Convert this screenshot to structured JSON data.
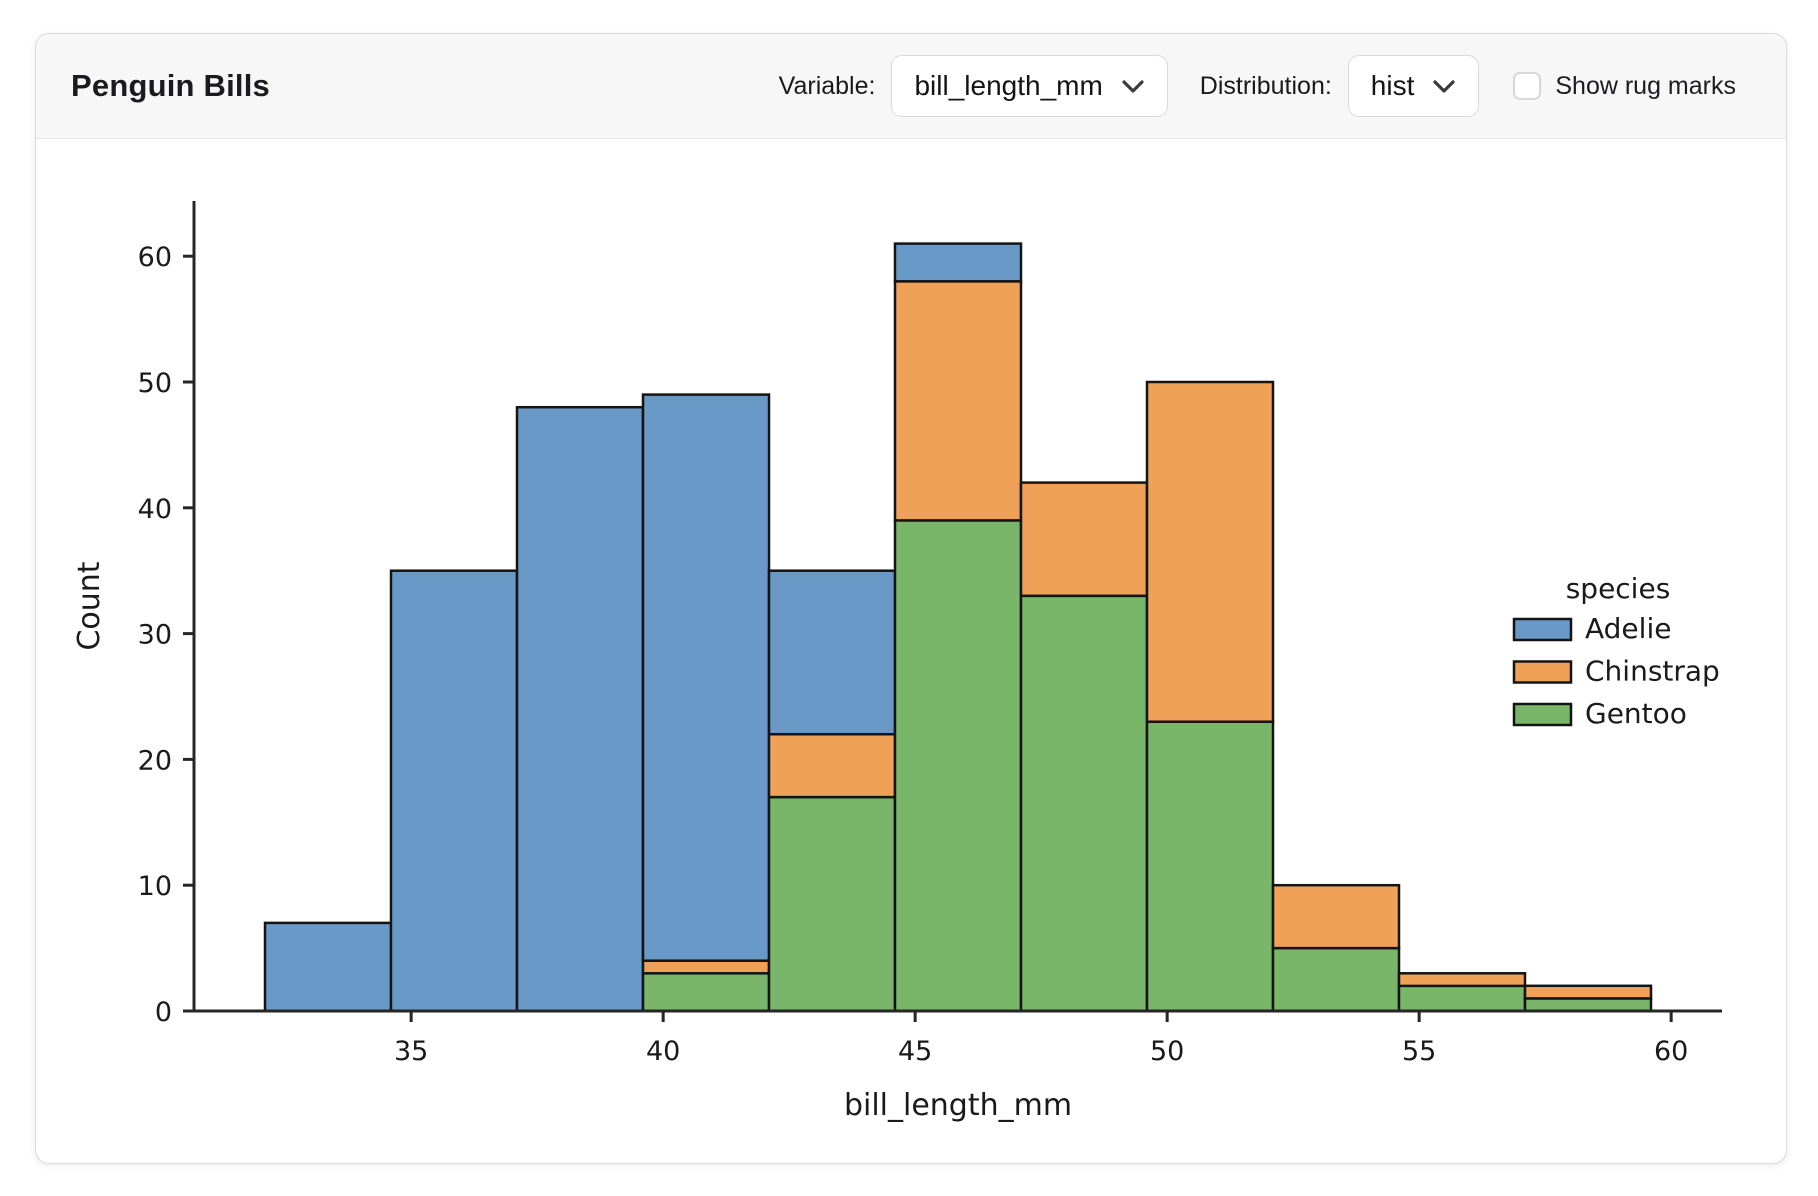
{
  "card": {
    "title": "Penguin Bills"
  },
  "controls": {
    "variable_label": "Variable:",
    "variable_value": "bill_length_mm",
    "distribution_label": "Distribution:",
    "distribution_value": "hist",
    "rug_label": "Show rug marks",
    "rug_checked": false
  },
  "chart_data": {
    "type": "bar",
    "subtype": "stacked-histogram",
    "title": "",
    "xlabel": "bill_length_mm",
    "ylabel": "Count",
    "bin_start": 32.1,
    "bin_width": 2.5,
    "bin_edges": [
      32.1,
      34.6,
      37.1,
      39.6,
      42.1,
      44.6,
      47.1,
      49.6,
      52.1,
      54.6,
      57.1,
      59.6
    ],
    "x_ticks": [
      35,
      40,
      45,
      50,
      55,
      60
    ],
    "y_ticks": [
      0,
      10,
      20,
      30,
      40,
      50,
      60
    ],
    "xlim": [
      30.69,
      61.01
    ],
    "ylim": [
      0,
      64.4
    ],
    "grid": false,
    "series": [
      {
        "name": "Adelie",
        "color": "#6999C7",
        "values": [
          7,
          35,
          48,
          45,
          13,
          3,
          0,
          0,
          0,
          0,
          0
        ]
      },
      {
        "name": "Chinstrap",
        "color": "#EFA157",
        "values": [
          0,
          0,
          0,
          1,
          5,
          19,
          9,
          27,
          5,
          1,
          1
        ]
      },
      {
        "name": "Gentoo",
        "color": "#7AB66A",
        "values": [
          0,
          0,
          0,
          3,
          17,
          39,
          33,
          23,
          5,
          2,
          1
        ]
      }
    ],
    "stack_order_bottom_to_top": [
      "Gentoo",
      "Chinstrap",
      "Adelie"
    ],
    "bar_edge_color": "#141414",
    "axis_color": "#262626",
    "legend": {
      "title": "species",
      "entries": [
        "Adelie",
        "Chinstrap",
        "Gentoo"
      ],
      "position": "right"
    }
  }
}
